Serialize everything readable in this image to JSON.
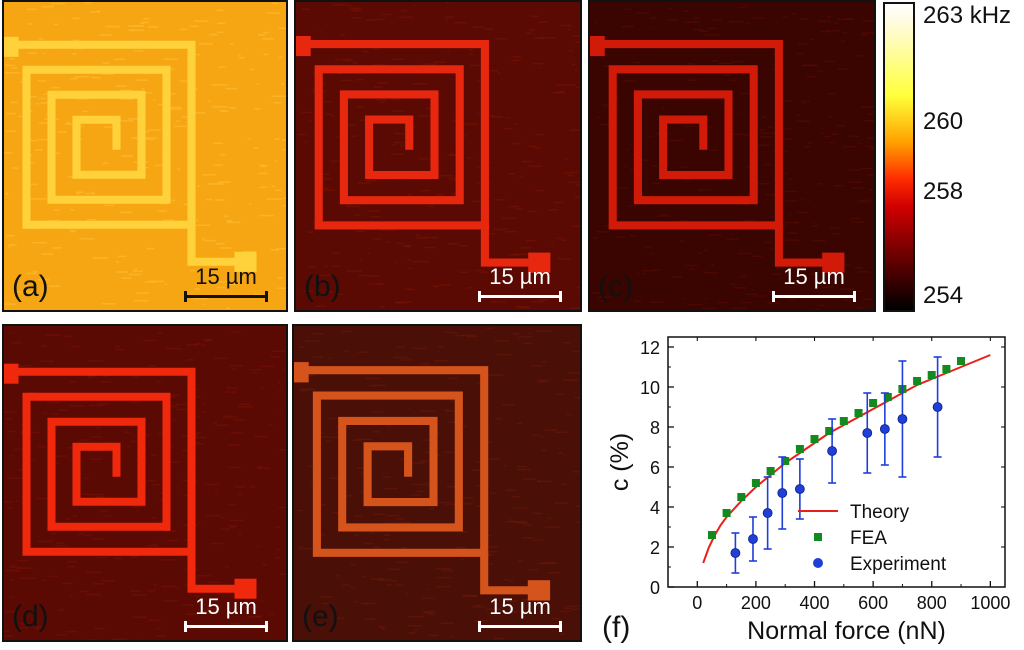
{
  "panels": [
    {
      "label": "(a)",
      "scale": "15 µm",
      "bg": "#f6a612",
      "line": "#ffd23c",
      "grain": "#ffbf3a"
    },
    {
      "label": "(b)",
      "scale": "15 µm",
      "bg": "#5a0a02",
      "line": "#e8270f",
      "grain": "#7a1406"
    },
    {
      "label": "(c)",
      "scale": "15 µm",
      "bg": "#3a0400",
      "line": "#d11a08",
      "grain": "#5a0c02"
    },
    {
      "label": "(d)",
      "scale": "15 µm",
      "bg": "#5a0903",
      "line": "#f0290c",
      "grain": "#781306"
    },
    {
      "label": "(e)",
      "scale": "15 µm",
      "bg": "#4a0f06",
      "line": "#d4541c",
      "grain": "#6a1a0a"
    }
  ],
  "colorbar": {
    "ticks": [
      "263 kHz",
      "260",
      "258",
      "254"
    ]
  },
  "chart_data": {
    "type": "scatter",
    "panel_label": "(f)",
    "xlabel": "Normal force (nN)",
    "ylabel": "c (%)",
    "xlim": [
      -100,
      1050
    ],
    "ylim": [
      0,
      12.5
    ],
    "xticks": [
      "0",
      "200",
      "400",
      "600",
      "800",
      "1000"
    ],
    "yticks": [
      "0",
      "2",
      "4",
      "6",
      "8",
      "10",
      "12"
    ],
    "legend_position": "bottom-right",
    "series": [
      {
        "name": "Theory",
        "kind": "line",
        "color": "#e8201c",
        "x": [
          20,
          40,
          60,
          80,
          100,
          150,
          200,
          250,
          300,
          350,
          400,
          450,
          500,
          550,
          600,
          650,
          700,
          750,
          800,
          850,
          900,
          950,
          1000
        ],
        "y": [
          1.2,
          2.0,
          2.6,
          3.1,
          3.5,
          4.3,
          5.0,
          5.6,
          6.2,
          6.7,
          7.2,
          7.7,
          8.1,
          8.5,
          8.9,
          9.3,
          9.7,
          10.1,
          10.4,
          10.7,
          11.0,
          11.3,
          11.6
        ]
      },
      {
        "name": "FEA",
        "kind": "square",
        "color": "#138a1d",
        "x": [
          50,
          100,
          150,
          200,
          250,
          300,
          350,
          400,
          450,
          500,
          550,
          600,
          650,
          700,
          750,
          800,
          850,
          900
        ],
        "y": [
          2.6,
          3.7,
          4.5,
          5.2,
          5.8,
          6.3,
          6.9,
          7.4,
          7.8,
          8.3,
          8.7,
          9.2,
          9.5,
          9.9,
          10.3,
          10.6,
          10.9,
          11.3
        ]
      },
      {
        "name": "Experiment",
        "kind": "circle",
        "color": "#1f3fd8",
        "x": [
          130,
          190,
          240,
          290,
          350,
          460,
          580,
          640,
          700,
          820
        ],
        "y": [
          1.7,
          2.4,
          3.7,
          4.7,
          4.9,
          6.8,
          7.7,
          7.9,
          8.4,
          9.0
        ],
        "err": [
          1.0,
          1.1,
          1.8,
          1.8,
          1.5,
          1.6,
          2.0,
          1.8,
          2.9,
          2.5
        ]
      }
    ]
  }
}
